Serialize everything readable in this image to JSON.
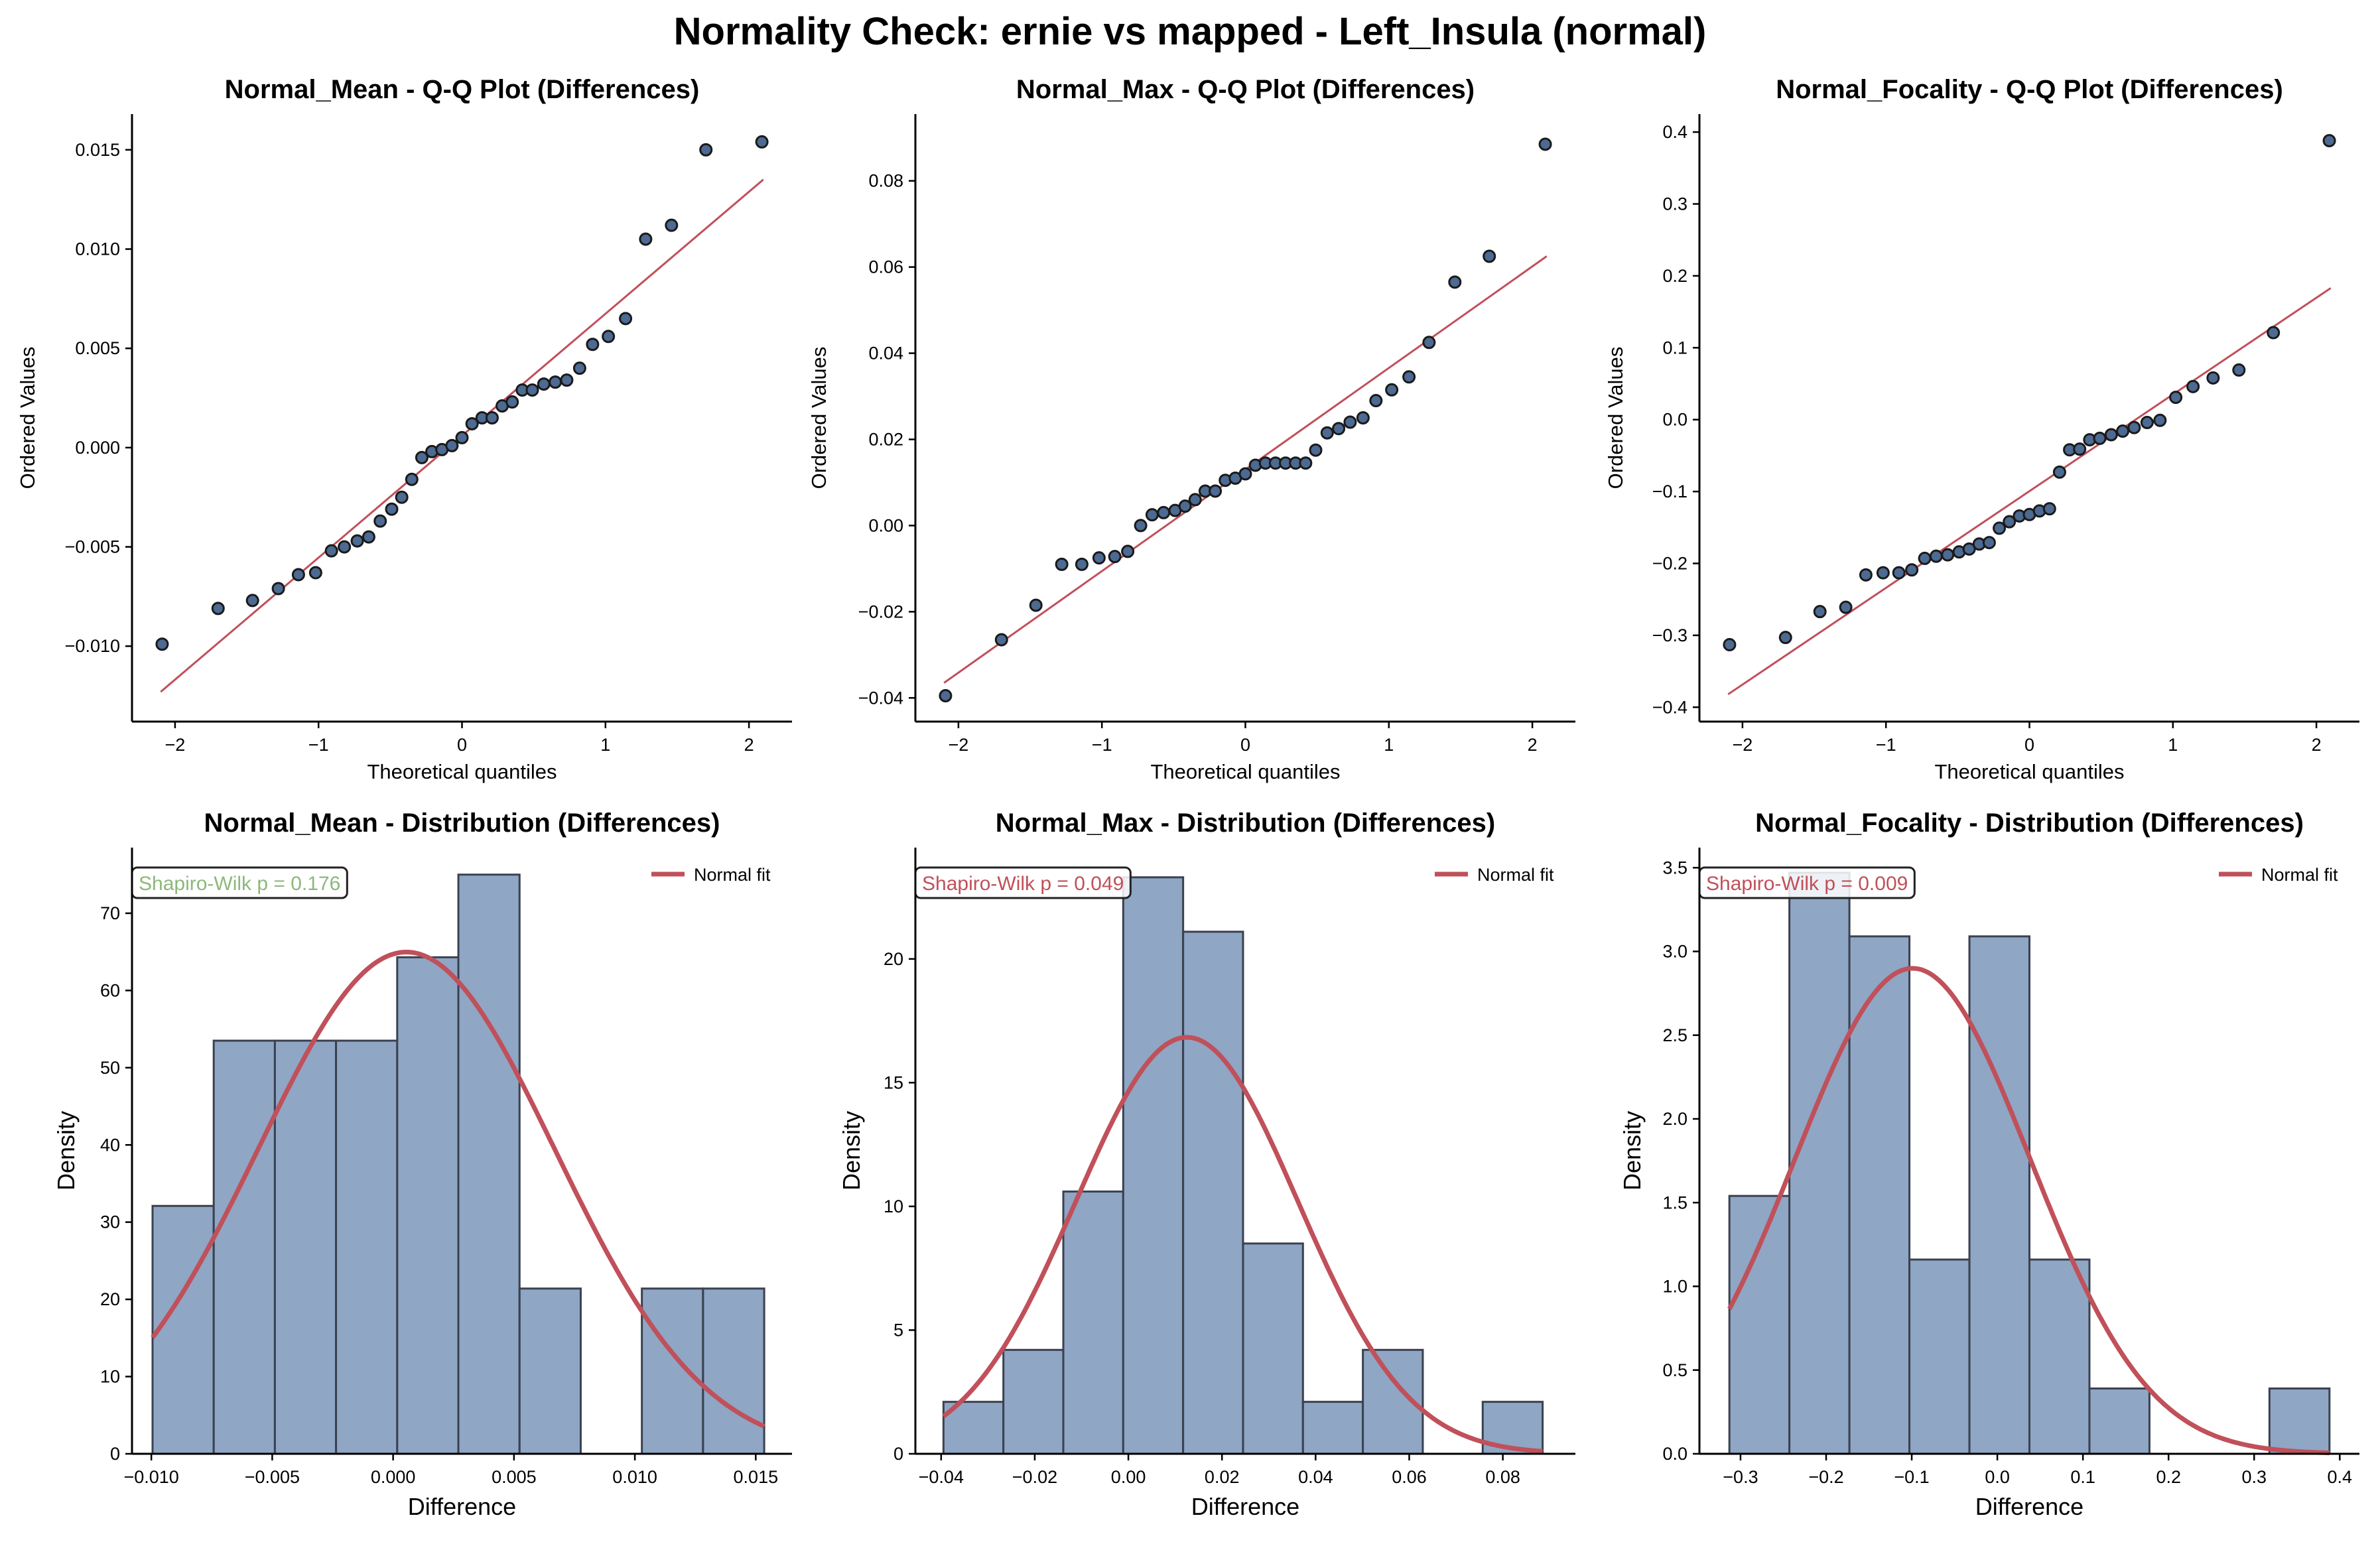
{
  "suptitle": "Normality Check: ernie vs mapped - Left_Insula (normal)",
  "colors": {
    "point": "#4c6a92",
    "point_edge": "#1a1a1a",
    "line": "#c0505a",
    "bar": "#8fa6c4",
    "bar_edge": "#3a4150",
    "sw_pass": "#8db87a",
    "sw_fail": "#c0505a"
  },
  "chart_data": [
    {
      "type": "scatter",
      "title": "Normal_Mean - Q-Q Plot (Differences)",
      "xlabel": "Theoretical quantiles",
      "ylabel": "Ordered Values",
      "xlim": [
        -2.3,
        2.3
      ],
      "ylim": [
        -0.0138,
        0.0168
      ],
      "xticks": [
        -2,
        -1,
        0,
        1,
        2
      ],
      "xticklabels": [
        "−2",
        "−1",
        "0",
        "1",
        "2"
      ],
      "yticks": [
        -0.01,
        -0.005,
        0.0,
        0.005,
        0.01,
        0.015
      ],
      "yticklabels": [
        "−0.010",
        "−0.005",
        "0.000",
        "0.005",
        "0.010",
        "0.015"
      ],
      "fit_line": [
        [
          -2.1,
          -0.0123
        ],
        [
          2.1,
          0.0135
        ]
      ],
      "points": [
        [
          -2.09,
          -0.0099
        ],
        [
          -1.7,
          -0.0081
        ],
        [
          -1.46,
          -0.0077
        ],
        [
          -1.28,
          -0.0071
        ],
        [
          -1.14,
          -0.0064
        ],
        [
          -1.02,
          -0.0063
        ],
        [
          -0.91,
          -0.0052
        ],
        [
          -0.82,
          -0.005
        ],
        [
          -0.73,
          -0.0047
        ],
        [
          -0.65,
          -0.0045
        ],
        [
          -0.57,
          -0.0037
        ],
        [
          -0.49,
          -0.0031
        ],
        [
          -0.42,
          -0.0025
        ],
        [
          -0.35,
          -0.0016
        ],
        [
          -0.28,
          -0.0005
        ],
        [
          -0.21,
          -0.0002
        ],
        [
          -0.14,
          -0.0001
        ],
        [
          -0.07,
          0.0001
        ],
        [
          0.0,
          0.0005
        ],
        [
          0.07,
          0.0012
        ],
        [
          0.14,
          0.0015
        ],
        [
          0.21,
          0.0015
        ],
        [
          0.28,
          0.0021
        ],
        [
          0.35,
          0.0023
        ],
        [
          0.42,
          0.0029
        ],
        [
          0.49,
          0.0029
        ],
        [
          0.57,
          0.0032
        ],
        [
          0.65,
          0.0033
        ],
        [
          0.73,
          0.0034
        ],
        [
          0.82,
          0.004
        ],
        [
          0.91,
          0.0052
        ],
        [
          1.02,
          0.0056
        ],
        [
          1.14,
          0.0065
        ],
        [
          1.28,
          0.0105
        ],
        [
          1.46,
          0.0112
        ],
        [
          1.7,
          0.015
        ],
        [
          2.09,
          0.0154
        ]
      ]
    },
    {
      "type": "scatter",
      "title": "Normal_Max - Q-Q Plot (Differences)",
      "xlabel": "Theoretical quantiles",
      "ylabel": "Ordered Values",
      "xlim": [
        -2.3,
        2.3
      ],
      "ylim": [
        -0.0455,
        0.0955
      ],
      "xticks": [
        -2,
        -1,
        0,
        1,
        2
      ],
      "xticklabels": [
        "−2",
        "−1",
        "0",
        "1",
        "2"
      ],
      "yticks": [
        -0.04,
        -0.02,
        0.0,
        0.02,
        0.04,
        0.06,
        0.08
      ],
      "yticklabels": [
        "−0.04",
        "−0.02",
        "0.00",
        "0.02",
        "0.04",
        "0.06",
        "0.08"
      ],
      "fit_line": [
        [
          -2.1,
          -0.0365
        ],
        [
          2.1,
          0.0625
        ]
      ],
      "points": [
        [
          -2.09,
          -0.0395
        ],
        [
          -1.7,
          -0.0265
        ],
        [
          -1.46,
          -0.0185
        ],
        [
          -1.28,
          -0.009
        ],
        [
          -1.14,
          -0.009
        ],
        [
          -1.02,
          -0.0075
        ],
        [
          -0.91,
          -0.0072
        ],
        [
          -0.82,
          -0.006
        ],
        [
          -0.73,
          0.0
        ],
        [
          -0.65,
          0.0025
        ],
        [
          -0.57,
          0.003
        ],
        [
          -0.49,
          0.0035
        ],
        [
          -0.42,
          0.0045
        ],
        [
          -0.35,
          0.006
        ],
        [
          -0.28,
          0.008
        ],
        [
          -0.21,
          0.008
        ],
        [
          -0.14,
          0.0105
        ],
        [
          -0.07,
          0.011
        ],
        [
          0.0,
          0.012
        ],
        [
          0.07,
          0.014
        ],
        [
          0.14,
          0.0145
        ],
        [
          0.21,
          0.0145
        ],
        [
          0.28,
          0.0145
        ],
        [
          0.35,
          0.0145
        ],
        [
          0.42,
          0.0145
        ],
        [
          0.49,
          0.0175
        ],
        [
          0.57,
          0.0215
        ],
        [
          0.65,
          0.0225
        ],
        [
          0.73,
          0.024
        ],
        [
          0.82,
          0.025
        ],
        [
          0.91,
          0.029
        ],
        [
          1.02,
          0.0315
        ],
        [
          1.14,
          0.0345
        ],
        [
          1.28,
          0.0425
        ],
        [
          1.46,
          0.0565
        ],
        [
          1.7,
          0.0625
        ],
        [
          2.09,
          0.0885
        ]
      ]
    },
    {
      "type": "scatter",
      "title": "Normal_Focality - Q-Q Plot (Differences)",
      "xlabel": "Theoretical quantiles",
      "ylabel": "Ordered Values",
      "xlim": [
        -2.3,
        2.3
      ],
      "ylim": [
        -0.42,
        0.425
      ],
      "xticks": [
        -2,
        -1,
        0,
        1,
        2
      ],
      "xticklabels": [
        "−2",
        "−1",
        "0",
        "1",
        "2"
      ],
      "yticks": [
        -0.4,
        -0.3,
        -0.2,
        -0.1,
        0.0,
        0.1,
        0.2,
        0.3,
        0.4
      ],
      "yticklabels": [
        "−0.4",
        "−0.3",
        "−0.2",
        "−0.1",
        "0.0",
        "0.1",
        "0.2",
        "0.3",
        "0.4"
      ],
      "fit_line": [
        [
          -2.1,
          -0.382
        ],
        [
          2.1,
          0.183
        ]
      ],
      "points": [
        [
          -2.09,
          -0.313
        ],
        [
          -1.7,
          -0.303
        ],
        [
          -1.46,
          -0.267
        ],
        [
          -1.28,
          -0.261
        ],
        [
          -1.14,
          -0.216
        ],
        [
          -1.02,
          -0.213
        ],
        [
          -0.91,
          -0.213
        ],
        [
          -0.82,
          -0.209
        ],
        [
          -0.73,
          -0.193
        ],
        [
          -0.65,
          -0.19
        ],
        [
          -0.57,
          -0.188
        ],
        [
          -0.49,
          -0.184
        ],
        [
          -0.42,
          -0.18
        ],
        [
          -0.35,
          -0.173
        ],
        [
          -0.28,
          -0.171
        ],
        [
          -0.21,
          -0.151
        ],
        [
          -0.14,
          -0.142
        ],
        [
          -0.07,
          -0.134
        ],
        [
          0.0,
          -0.132
        ],
        [
          0.07,
          -0.127
        ],
        [
          0.14,
          -0.124
        ],
        [
          0.21,
          -0.073
        ],
        [
          0.28,
          -0.042
        ],
        [
          0.35,
          -0.041
        ],
        [
          0.42,
          -0.028
        ],
        [
          0.49,
          -0.026
        ],
        [
          0.57,
          -0.021
        ],
        [
          0.65,
          -0.016
        ],
        [
          0.73,
          -0.011
        ],
        [
          0.82,
          -0.004
        ],
        [
          0.91,
          -0.001
        ],
        [
          1.02,
          0.031
        ],
        [
          1.14,
          0.046
        ],
        [
          1.28,
          0.058
        ],
        [
          1.46,
          0.069
        ],
        [
          1.7,
          0.121
        ],
        [
          2.09,
          0.388
        ]
      ]
    },
    {
      "type": "bar",
      "title": "Normal_Mean - Distribution (Differences)",
      "xlabel": "Difference",
      "ylabel": "Density",
      "xlim": [
        -0.0108,
        0.0165
      ],
      "ylim": [
        0,
        78.5
      ],
      "xticks": [
        -0.01,
        -0.005,
        0.0,
        0.005,
        0.01,
        0.015
      ],
      "xticklabels": [
        "−0.010",
        "−0.005",
        "0.000",
        "0.005",
        "0.010",
        "0.015"
      ],
      "yticks": [
        0,
        10,
        20,
        30,
        40,
        50,
        60,
        70
      ],
      "yticklabels": [
        "0",
        "10",
        "20",
        "30",
        "40",
        "50",
        "60",
        "70"
      ],
      "bin_edges": [
        -0.00995,
        -0.00742,
        -0.00489,
        -0.00236,
        0.00017,
        0.0027,
        0.00523,
        0.00776,
        0.01029,
        0.01282,
        0.01535
      ],
      "values": [
        32.1,
        53.5,
        53.5,
        53.5,
        64.3,
        75.0,
        21.4,
        0.0,
        21.4,
        21.4
      ],
      "fit": {
        "mean": 0.00055,
        "sd": 0.00614
      },
      "legend": "Normal fit",
      "annotation": "Shapiro-Wilk p = 0.176",
      "annotation_status": "pass"
    },
    {
      "type": "bar",
      "title": "Normal_Max - Distribution (Differences)",
      "xlabel": "Difference",
      "ylabel": "Density",
      "xlim": [
        -0.0455,
        0.0955
      ],
      "ylim": [
        0,
        24.5
      ],
      "xticks": [
        -0.04,
        -0.02,
        0.0,
        0.02,
        0.04,
        0.06,
        0.08
      ],
      "xticklabels": [
        "−0.04",
        "−0.02",
        "0.00",
        "0.02",
        "0.04",
        "0.06",
        "0.08"
      ],
      "yticks": [
        0,
        5,
        10,
        15,
        20
      ],
      "yticklabels": [
        "0",
        "5",
        "10",
        "15",
        "20"
      ],
      "bin_edges": [
        -0.0395,
        -0.0267,
        -0.0139,
        -0.0011,
        0.0117,
        0.0245,
        0.0373,
        0.0501,
        0.0629,
        0.0757,
        0.0885
      ],
      "values": [
        2.1,
        4.2,
        10.6,
        23.3,
        21.1,
        8.5,
        2.1,
        4.2,
        0.0,
        2.1
      ],
      "fit": {
        "mean": 0.0125,
        "sd": 0.0237
      },
      "legend": "Normal fit",
      "annotation": "Shapiro-Wilk p = 0.049",
      "annotation_status": "fail"
    },
    {
      "type": "bar",
      "title": "Normal_Focality - Distribution (Differences)",
      "xlabel": "Difference",
      "ylabel": "Density",
      "xlim": [
        -0.348,
        0.423
      ],
      "ylim": [
        0,
        3.62
      ],
      "xticks": [
        -0.3,
        -0.2,
        -0.1,
        0.0,
        0.1,
        0.2,
        0.3,
        0.4
      ],
      "xticklabels": [
        "−0.3",
        "−0.2",
        "−0.1",
        "0.0",
        "0.1",
        "0.2",
        "0.3",
        "0.4"
      ],
      "yticks": [
        0,
        0.5,
        1.0,
        1.5,
        2.0,
        2.5,
        3.0,
        3.5
      ],
      "yticklabels": [
        "0.0",
        "0.5",
        "1.0",
        "1.5",
        "2.0",
        "2.5",
        "3.0",
        "3.5"
      ],
      "bin_edges": [
        -0.313,
        -0.2429,
        -0.1728,
        -0.1027,
        -0.0326,
        0.0375,
        0.1076,
        0.1777,
        0.2478,
        0.3179,
        0.388
      ],
      "values": [
        1.54,
        3.47,
        3.09,
        1.16,
        3.09,
        1.16,
        0.39,
        0.0,
        0.0,
        0.39
      ],
      "fit": {
        "mean": -0.099,
        "sd": 0.1376
      },
      "legend": "Normal fit",
      "annotation": "Shapiro-Wilk p = 0.009",
      "annotation_status": "fail"
    }
  ]
}
